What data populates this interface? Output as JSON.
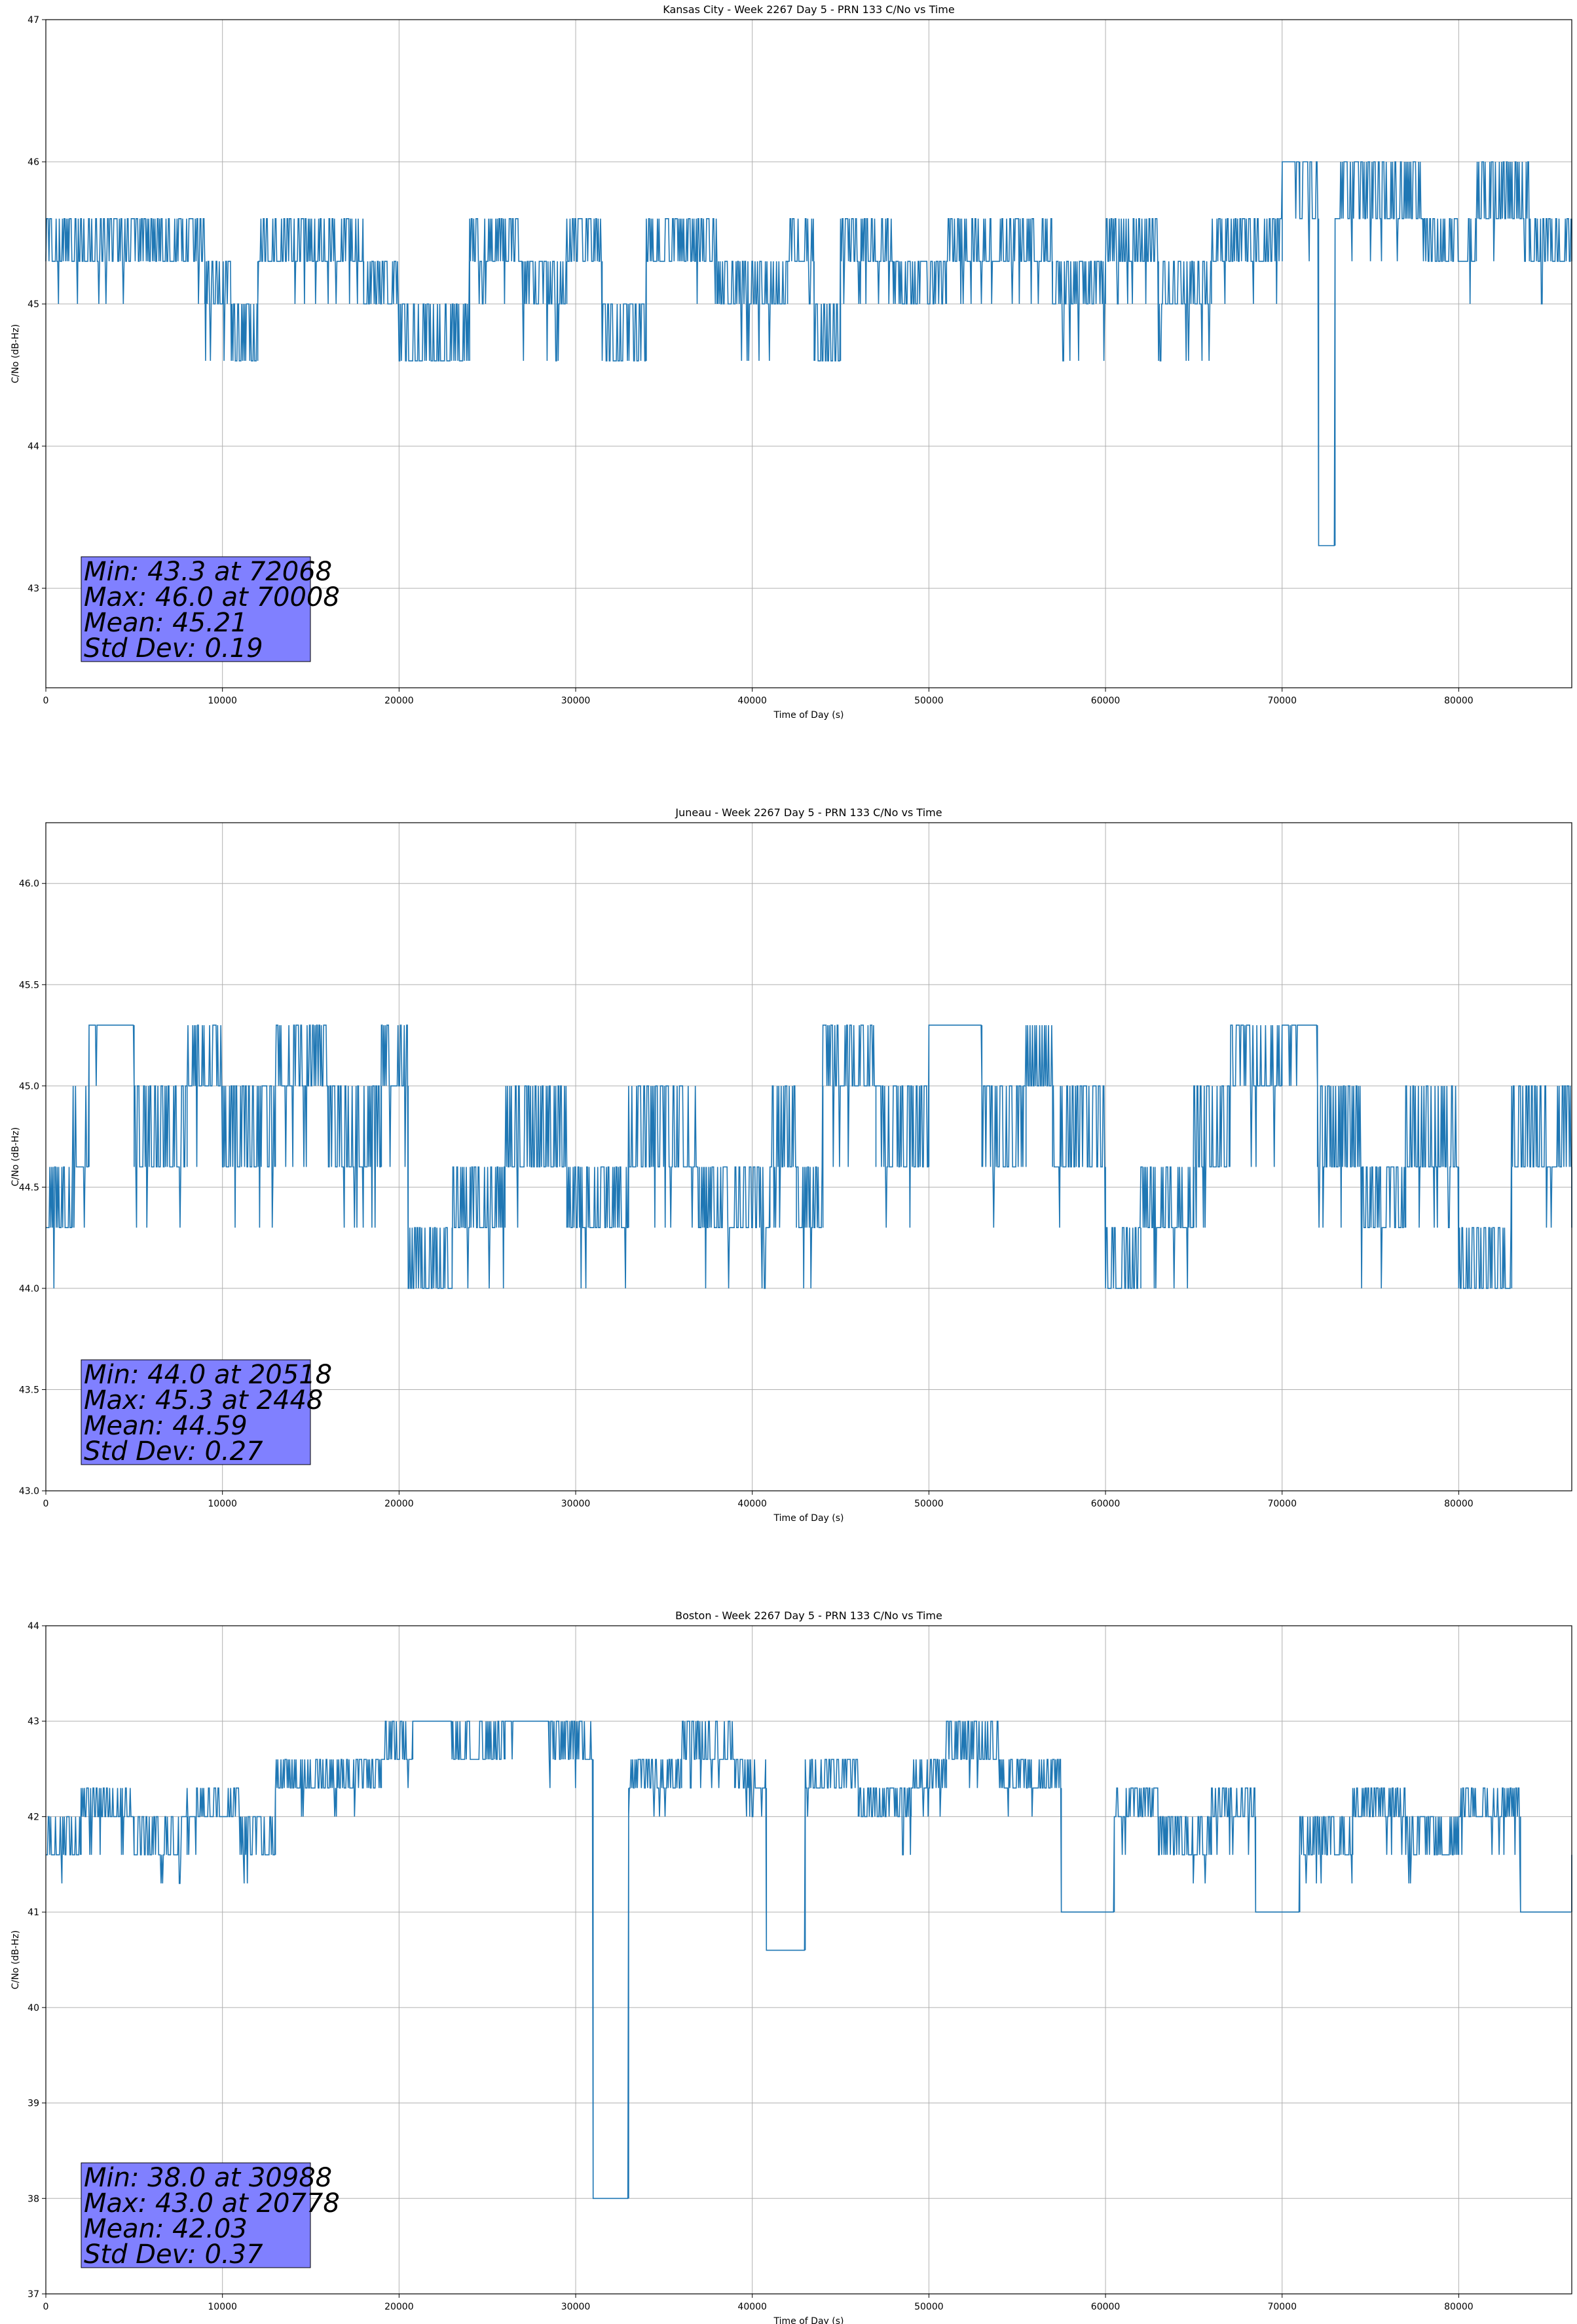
{
  "chart_data": [
    {
      "type": "line",
      "title": "Kansas City - Week 2267 Day 5 - PRN 133 C/No vs Time",
      "xlabel": "Time of Day (s)",
      "ylabel": "C/No (dB-Hz)",
      "xlim": [
        0,
        86400
      ],
      "ylim": [
        42.3,
        47.0
      ],
      "xticks": [
        0,
        10000,
        20000,
        30000,
        40000,
        50000,
        60000,
        70000,
        80000
      ],
      "yticks": [
        43,
        44,
        45,
        46,
        47
      ],
      "grid": true,
      "color": "#1f77b4",
      "levels": [
        44.6,
        45.0,
        45.3,
        45.6,
        46.0
      ],
      "series": [
        {
          "x": [
            0,
            3000,
            6000,
            9000,
            10500,
            12000,
            15000,
            18000,
            20000,
            21500,
            24000,
            27000,
            29500,
            31500,
            34000,
            38000,
            42000,
            43500,
            45000,
            48000,
            51000,
            54000,
            57000,
            60000,
            63000,
            66000,
            69000,
            70008,
            71000,
            72068,
            73000,
            75000,
            78000,
            81000,
            84000,
            86400
          ],
          "values": [
            45.3,
            45.3,
            45.3,
            45.0,
            44.6,
            45.3,
            45.3,
            45.0,
            44.6,
            44.6,
            45.3,
            45.0,
            45.3,
            44.6,
            45.3,
            45.0,
            45.3,
            44.6,
            45.3,
            45.0,
            45.3,
            45.3,
            45.0,
            45.3,
            45.0,
            45.3,
            45.3,
            46.0,
            45.6,
            43.3,
            45.6,
            45.6,
            45.3,
            45.6,
            45.3,
            45.6
          ]
        }
      ],
      "stats": {
        "min": "Min: 43.3 at 72068",
        "max": "Max: 46.0 at 70008",
        "mean": "Mean: 45.21",
        "std": "Std Dev: 0.19"
      }
    },
    {
      "type": "line",
      "title": "Juneau - Week 2267 Day 5 - PRN 133 C/No vs Time",
      "xlabel": "Time of Day (s)",
      "ylabel": "C/No (dB-Hz)",
      "xlim": [
        0,
        86400
      ],
      "ylim": [
        43.0,
        46.3
      ],
      "xticks": [
        0,
        10000,
        20000,
        30000,
        40000,
        50000,
        60000,
        70000,
        80000
      ],
      "yticks": [
        43.0,
        43.5,
        44.0,
        44.5,
        45.0,
        45.5,
        46.0
      ],
      "ytick_labels": [
        "43.0",
        "43.5",
        "44.0",
        "44.5",
        "45.0",
        "45.5",
        "46.0"
      ],
      "grid": true,
      "color": "#1f77b4",
      "levels": [
        44.0,
        44.3,
        44.6,
        45.0,
        45.3
      ],
      "series": [
        {
          "x": [
            0,
            1500,
            2448,
            5000,
            8000,
            10000,
            13000,
            16000,
            19000,
            20518,
            23000,
            26000,
            29500,
            33000,
            37000,
            41000,
            42500,
            44000,
            47000,
            50000,
            53000,
            55500,
            57000,
            60000,
            62000,
            65000,
            67000,
            70000,
            72000,
            74500,
            77000,
            80000,
            83000,
            86400
          ],
          "values": [
            44.3,
            44.6,
            45.3,
            44.6,
            45.0,
            44.6,
            45.0,
            44.6,
            45.0,
            44.0,
            44.3,
            44.6,
            44.3,
            44.6,
            44.3,
            44.6,
            44.3,
            45.0,
            44.6,
            45.3,
            44.6,
            45.0,
            44.6,
            44.0,
            44.3,
            44.6,
            45.0,
            45.3,
            44.6,
            44.3,
            44.6,
            44.0,
            44.6,
            44.3
          ]
        }
      ],
      "stats": {
        "min": "Min: 44.0 at 20518",
        "max": "Max: 45.3 at 2448",
        "mean": "Mean: 44.59",
        "std": "Std Dev: 0.27"
      }
    },
    {
      "type": "line",
      "title": "Boston - Week 2267 Day 5 - PRN 133 C/No vs Time",
      "xlabel": "Time of Day (s)",
      "ylabel": "C/No (dB-Hz)",
      "xlim": [
        0,
        86400
      ],
      "ylim": [
        37.0,
        44.0
      ],
      "xticks": [
        0,
        10000,
        20000,
        30000,
        40000,
        50000,
        60000,
        70000,
        80000
      ],
      "yticks": [
        37,
        38,
        39,
        40,
        41,
        42,
        43,
        44
      ],
      "grid": true,
      "color": "#1f77b4",
      "levels": [
        41.3,
        41.6,
        42.0,
        42.3,
        42.6,
        43.0
      ],
      "series": [
        {
          "x": [
            0,
            2000,
            5000,
            8000,
            11000,
            13000,
            16000,
            19000,
            20778,
            23000,
            26000,
            28500,
            30988,
            33000,
            36000,
            39000,
            40800,
            43000,
            46000,
            49000,
            51000,
            54000,
            57500,
            60500,
            63000,
            66000,
            68500,
            71000,
            74000,
            77000,
            80000,
            83500,
            86400
          ],
          "values": [
            41.6,
            42.0,
            41.6,
            42.0,
            41.6,
            42.3,
            42.3,
            42.6,
            43.0,
            42.6,
            43.0,
            42.6,
            38.0,
            42.3,
            42.6,
            42.3,
            40.6,
            42.3,
            42.0,
            42.3,
            42.6,
            42.3,
            41.0,
            42.0,
            41.6,
            42.0,
            41.0,
            41.6,
            42.0,
            41.6,
            42.0,
            41.0,
            41.6
          ]
        }
      ],
      "stats": {
        "min": "Min: 38.0 at 30988",
        "max": "Max: 43.0 at 20778",
        "mean": "Mean: 42.03",
        "std": "Std Dev: 0.37"
      }
    }
  ]
}
